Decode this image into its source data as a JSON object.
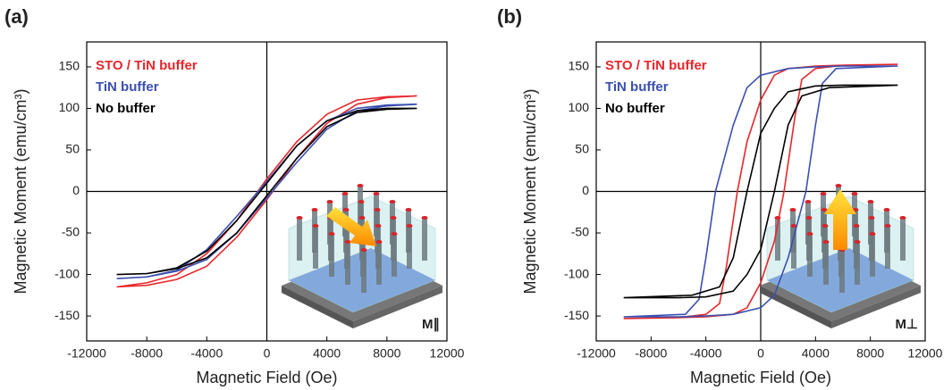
{
  "chart_data": [
    {
      "type": "line",
      "panel_label": "(a)",
      "x_label": "Magnetic Field (Oe)",
      "y_label": "Magnetic Moment (emu/cm³)",
      "inset_label": "M∥",
      "xlim": [
        -12000,
        12000
      ],
      "xticks": [
        -12000,
        -8000,
        -4000,
        0,
        4000,
        8000,
        12000
      ],
      "ylim": [
        -180,
        180
      ],
      "yticks": [
        -150,
        -100,
        -50,
        0,
        50,
        100,
        150
      ],
      "series": [
        {
          "name": "STO / TiN buffer",
          "color": "#e8262b",
          "x": [
            10000,
            8000,
            6000,
            4000,
            2000,
            0,
            -2000,
            -4000,
            -6000,
            -8000,
            -10000,
            -8000,
            -6000,
            -4000,
            -2000,
            0,
            2000,
            4000,
            6000,
            8000,
            10000
          ],
          "values": [
            115,
            114,
            110,
            93,
            60,
            15,
            -35,
            -75,
            -100,
            -110,
            -115,
            -113,
            -106,
            -90,
            -55,
            -10,
            40,
            82,
            105,
            113,
            115
          ]
        },
        {
          "name": "TiN buffer",
          "color": "#3a4fb0",
          "x": [
            10000,
            8000,
            6000,
            4000,
            2000,
            0,
            -2000,
            -4000,
            -6000,
            -8000,
            -10000,
            -8000,
            -6000,
            -4000,
            -2000,
            0,
            2000,
            4000,
            6000,
            8000,
            10000
          ],
          "values": [
            105,
            104,
            100,
            85,
            55,
            12,
            -30,
            -70,
            -95,
            -103,
            -105,
            -103,
            -96,
            -82,
            -50,
            -8,
            35,
            75,
            97,
            103,
            105
          ]
        },
        {
          "name": "No buffer",
          "color": "#000000",
          "x": [
            10000,
            8000,
            6000,
            4000,
            2000,
            0,
            -2000,
            -4000,
            -6000,
            -8000,
            -10000,
            -8000,
            -6000,
            -4000,
            -2000,
            0,
            2000,
            4000,
            6000,
            8000,
            10000
          ],
          "values": [
            100,
            100,
            97,
            85,
            55,
            10,
            -35,
            -72,
            -92,
            -99,
            -100,
            -99,
            -93,
            -80,
            -50,
            -5,
            40,
            78,
            95,
            99,
            100
          ]
        }
      ]
    },
    {
      "type": "line",
      "panel_label": "(b)",
      "x_label": "Magnetic Field (Oe)",
      "y_label": "Magnetic Moment (emu/cm³)",
      "inset_label": "M⊥",
      "xlim": [
        -12000,
        12000
      ],
      "xticks": [
        -12000,
        -8000,
        -4000,
        0,
        4000,
        8000,
        12000
      ],
      "ylim": [
        -180,
        180
      ],
      "yticks": [
        -150,
        -100,
        -50,
        0,
        50,
        100,
        150
      ],
      "series": [
        {
          "name": "STO / TiN buffer",
          "color": "#e8262b",
          "x": [
            10000,
            6000,
            4000,
            2000,
            1000,
            0,
            -1000,
            -1700,
            -2500,
            -3000,
            -4000,
            -6000,
            -10000,
            -6000,
            -4000,
            -2000,
            -1000,
            0,
            1000,
            1700,
            2500,
            3000,
            4000,
            6000,
            10000
          ],
          "values": [
            153,
            152,
            151,
            148,
            140,
            110,
            60,
            0,
            -90,
            -135,
            -148,
            -152,
            -153,
            -152,
            -151,
            -148,
            -140,
            -110,
            -60,
            0,
            90,
            135,
            148,
            152,
            153
          ]
        },
        {
          "name": "TiN buffer",
          "color": "#3a4fb0",
          "x": [
            10000,
            6000,
            4000,
            2000,
            0,
            -1000,
            -2000,
            -3300,
            -4000,
            -4500,
            -5500,
            -10000,
            -6000,
            -4000,
            -2000,
            0,
            1000,
            2000,
            3300,
            4000,
            4500,
            5500,
            10000
          ],
          "values": [
            151,
            151,
            150,
            148,
            140,
            125,
            80,
            0,
            -80,
            -130,
            -148,
            -151,
            -151,
            -150,
            -148,
            -140,
            -125,
            -80,
            0,
            80,
            130,
            148,
            151
          ]
        },
        {
          "name": "No buffer",
          "color": "#000000",
          "x": [
            10000,
            6000,
            4000,
            2000,
            1000,
            0,
            -1000,
            -2000,
            -3000,
            -5000,
            -10000,
            -6000,
            -4000,
            -2000,
            -1000,
            0,
            1000,
            2000,
            3000,
            5000,
            10000
          ],
          "values": [
            128,
            128,
            127,
            120,
            100,
            70,
            0,
            -80,
            -115,
            -125,
            -128,
            -128,
            -127,
            -120,
            -100,
            -70,
            0,
            80,
            115,
            125,
            128
          ]
        }
      ]
    }
  ]
}
